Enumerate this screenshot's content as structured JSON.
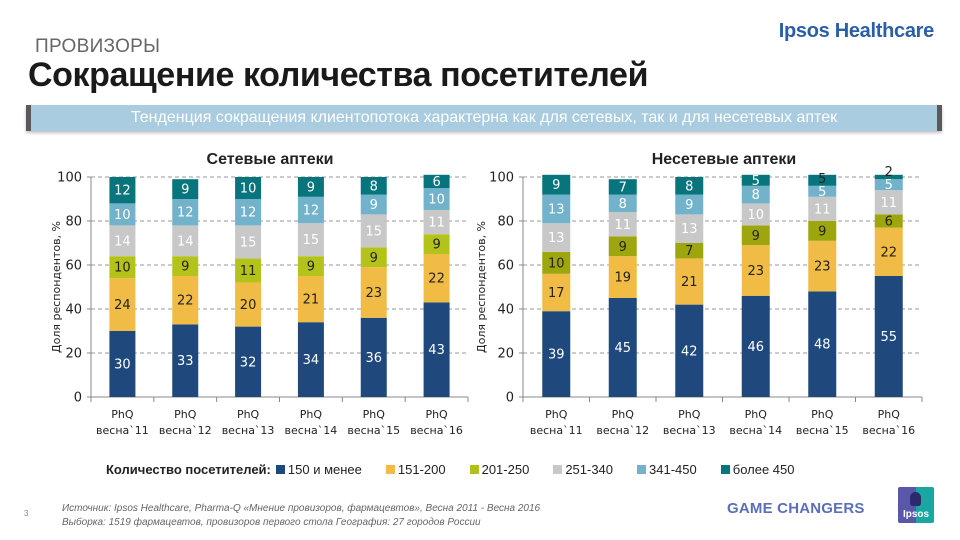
{
  "header": {
    "brand": "Ipsos Healthcare",
    "kicker": "ПРОВИЗОРЫ",
    "title": "Сокращение количества посетителей",
    "banner": "Тенденция  сокращения  клиентопотока  характерна  как для сетевых, так и для несетевых  аптек"
  },
  "legend": {
    "title": "Количество посетителей:",
    "items": [
      {
        "label": "150 и менее",
        "color": "#1f497d"
      },
      {
        "label": "151-200",
        "color": "#f0bc45"
      },
      {
        "label": "201-250",
        "color": "#b2c01a"
      },
      {
        "label": "251-340",
        "color": "#c8c8c8"
      },
      {
        "label": "341-450",
        "color": "#72b2cb"
      },
      {
        "label": "более 450",
        "color": "#08757d"
      }
    ]
  },
  "chart_data": [
    {
      "type": "bar",
      "stacked": true,
      "title": "Сетевые аптеки",
      "ylabel": "Доля респондентов, %",
      "xlabel": "",
      "ylim": [
        0,
        100
      ],
      "yticks": [
        0,
        20,
        40,
        60,
        80,
        100
      ],
      "grid": true,
      "categories": [
        [
          "PhQ",
          "весна`11"
        ],
        [
          "PhQ",
          "весна`12"
        ],
        [
          "PhQ",
          "весна`13"
        ],
        [
          "PhQ",
          "весна`14"
        ],
        [
          "PhQ",
          "весна`15"
        ],
        [
          "PhQ",
          "весна`16"
        ]
      ],
      "series": [
        {
          "name": "150 и менее",
          "color": "#1f497d",
          "label_color": "#ffffff",
          "values": [
            30,
            33,
            32,
            34,
            36,
            43
          ]
        },
        {
          "name": "151-200",
          "color": "#f0bc45",
          "label_color": "#222222",
          "values": [
            24,
            22,
            20,
            21,
            23,
            22
          ]
        },
        {
          "name": "201-250",
          "color": "#b4c31a",
          "label_color": "#222222",
          "values": [
            10,
            9,
            11,
            9,
            9,
            9
          ]
        },
        {
          "name": "251-340",
          "color": "#c8c8c8",
          "label_color": "#ffffff",
          "values": [
            14,
            14,
            15,
            15,
            15,
            11
          ]
        },
        {
          "name": "341-450",
          "color": "#72b2cb",
          "label_color": "#ffffff",
          "values": [
            10,
            12,
            12,
            12,
            9,
            10
          ]
        },
        {
          "name": "более 450",
          "color": "#08757d",
          "label_color": "#ffffff",
          "values": [
            12,
            9,
            10,
            9,
            8,
            6
          ]
        }
      ]
    },
    {
      "type": "bar",
      "stacked": true,
      "title": "Несетевые аптеки",
      "ylabel": "Доля респондентов, %",
      "xlabel": "",
      "ylim": [
        0,
        100
      ],
      "yticks": [
        0,
        20,
        40,
        60,
        80,
        100
      ],
      "grid": true,
      "categories": [
        [
          "PhQ",
          "весна`11"
        ],
        [
          "PhQ",
          "весна`12"
        ],
        [
          "PhQ",
          "весна`13"
        ],
        [
          "PhQ",
          "весна`14"
        ],
        [
          "PhQ",
          "весна`15"
        ],
        [
          "PhQ",
          "весна`16"
        ]
      ],
      "series": [
        {
          "name": "150 и менее",
          "color": "#1f497d",
          "label_color": "#ffffff",
          "values": [
            39,
            45,
            42,
            46,
            48,
            55
          ]
        },
        {
          "name": "151-200",
          "color": "#f0bc45",
          "label_color": "#222222",
          "values": [
            17,
            19,
            21,
            23,
            23,
            22
          ]
        },
        {
          "name": "201-250",
          "color": "#9ea60e",
          "label_color": "#222222",
          "values": [
            10,
            9,
            7,
            9,
            9,
            6
          ]
        },
        {
          "name": "251-340",
          "color": "#c8c8c8",
          "label_color": "#ffffff",
          "values": [
            13,
            11,
            13,
            10,
            11,
            11
          ]
        },
        {
          "name": "341-450",
          "color": "#72b2cb",
          "label_color": "#ffffff",
          "values": [
            13,
            8,
            9,
            8,
            5,
            5
          ]
        },
        {
          "name": "более 450",
          "color": "#08757d",
          "label_color": "#ffffff",
          "values": [
            9,
            7,
            8,
            5,
            5,
            2
          ]
        }
      ]
    }
  ],
  "footer": {
    "page_number": "3",
    "source_line1": "Источник: Ipsos Healthcare, Pharma-Q «Мнение провизоров, фармацевтов», Весна 2011 - Весна 2016",
    "source_line2": "Выборка:  1519 фармацевтов, провизоров первого стола  География: 27 городов России",
    "tagline": "GAME CHANGERS",
    "logo_text": "Ipsos"
  }
}
